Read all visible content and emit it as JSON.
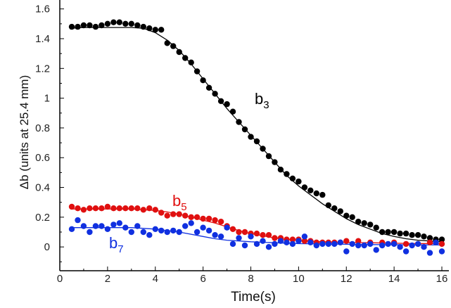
{
  "chart_data": {
    "type": "scatter",
    "xlabel": "Time(s)",
    "ylabel": "Δb (units at 25.4 mm)",
    "xlim": [
      0,
      16
    ],
    "ylim": [
      -0.16,
      1.66
    ],
    "x_ticks": [
      "0",
      "2",
      "4",
      "6",
      "8",
      "10",
      "12",
      "14",
      "16"
    ],
    "y_ticks": [
      "0",
      "0.2",
      "0.4",
      "0.6",
      "0.8",
      "1",
      "1.2",
      "1.4",
      "1.6"
    ],
    "grid": false,
    "series": [
      {
        "name": "b3",
        "label_base": "b",
        "label_sub": "3",
        "color": "#000000",
        "points": [
          [
            0.5,
            1.48
          ],
          [
            0.75,
            1.48
          ],
          [
            1.0,
            1.49
          ],
          [
            1.25,
            1.49
          ],
          [
            1.5,
            1.48
          ],
          [
            1.75,
            1.49
          ],
          [
            2.0,
            1.5
          ],
          [
            2.25,
            1.51
          ],
          [
            2.5,
            1.51
          ],
          [
            2.75,
            1.5
          ],
          [
            3.0,
            1.5
          ],
          [
            3.25,
            1.49
          ],
          [
            3.5,
            1.48
          ],
          [
            3.75,
            1.47
          ],
          [
            4.0,
            1.46
          ],
          [
            4.25,
            1.46
          ],
          [
            4.5,
            1.37
          ],
          [
            4.75,
            1.35
          ],
          [
            5.0,
            1.31
          ],
          [
            5.25,
            1.27
          ],
          [
            5.5,
            1.24
          ],
          [
            5.75,
            1.18
          ],
          [
            6.0,
            1.12
          ],
          [
            6.25,
            1.07
          ],
          [
            6.5,
            1.03
          ],
          [
            6.75,
            0.98
          ],
          [
            7.0,
            0.96
          ],
          [
            7.25,
            0.91
          ],
          [
            7.5,
            0.84
          ],
          [
            7.75,
            0.79
          ],
          [
            8.0,
            0.74
          ],
          [
            8.25,
            0.71
          ],
          [
            8.5,
            0.66
          ],
          [
            8.75,
            0.61
          ],
          [
            9.0,
            0.57
          ],
          [
            9.25,
            0.52
          ],
          [
            9.5,
            0.49
          ],
          [
            9.75,
            0.46
          ],
          [
            10.0,
            0.44
          ],
          [
            10.25,
            0.4
          ],
          [
            10.5,
            0.38
          ],
          [
            10.75,
            0.36
          ],
          [
            11.0,
            0.35
          ],
          [
            11.25,
            0.28
          ],
          [
            11.5,
            0.26
          ],
          [
            11.75,
            0.24
          ],
          [
            12.0,
            0.21
          ],
          [
            12.25,
            0.2
          ],
          [
            12.5,
            0.17
          ],
          [
            12.75,
            0.16
          ],
          [
            13.0,
            0.15
          ],
          [
            13.25,
            0.13
          ],
          [
            13.5,
            0.1
          ],
          [
            13.75,
            0.1
          ],
          [
            14.0,
            0.1
          ],
          [
            14.25,
            0.09
          ],
          [
            14.5,
            0.09
          ],
          [
            14.75,
            0.08
          ],
          [
            15.0,
            0.08
          ],
          [
            15.25,
            0.07
          ],
          [
            15.5,
            0.06
          ],
          [
            15.75,
            0.05
          ],
          [
            16.0,
            0.05
          ]
        ],
        "fit": [
          [
            0.5,
            1.47
          ],
          [
            1,
            1.475
          ],
          [
            2,
            1.475
          ],
          [
            3,
            1.475
          ],
          [
            3.5,
            1.47
          ],
          [
            4,
            1.44
          ],
          [
            4.5,
            1.39
          ],
          [
            5,
            1.32
          ],
          [
            5.5,
            1.23
          ],
          [
            6,
            1.13
          ],
          [
            6.5,
            1.03
          ],
          [
            7,
            0.93
          ],
          [
            7.5,
            0.84
          ],
          [
            8,
            0.75
          ],
          [
            8.5,
            0.66
          ],
          [
            9,
            0.57
          ],
          [
            9.5,
            0.48
          ],
          [
            10,
            0.41
          ],
          [
            10.5,
            0.35
          ],
          [
            11,
            0.29
          ],
          [
            11.5,
            0.24
          ],
          [
            12,
            0.19
          ],
          [
            12.5,
            0.15
          ],
          [
            13,
            0.12
          ],
          [
            13.5,
            0.09
          ],
          [
            14,
            0.07
          ],
          [
            14.5,
            0.055
          ],
          [
            15,
            0.045
          ],
          [
            15.5,
            0.04
          ],
          [
            16,
            0.035
          ]
        ]
      },
      {
        "name": "b5",
        "label_base": "b",
        "label_sub": "5",
        "color": "#e01010",
        "points": [
          [
            0.5,
            0.27
          ],
          [
            0.75,
            0.26
          ],
          [
            1.0,
            0.25
          ],
          [
            1.25,
            0.26
          ],
          [
            1.5,
            0.26
          ],
          [
            1.75,
            0.26
          ],
          [
            2.0,
            0.27
          ],
          [
            2.25,
            0.26
          ],
          [
            2.5,
            0.26
          ],
          [
            2.75,
            0.26
          ],
          [
            3.0,
            0.26
          ],
          [
            3.25,
            0.26
          ],
          [
            3.5,
            0.25
          ],
          [
            3.75,
            0.26
          ],
          [
            4.0,
            0.25
          ],
          [
            4.25,
            0.23
          ],
          [
            4.5,
            0.21
          ],
          [
            4.75,
            0.22
          ],
          [
            5.0,
            0.22
          ],
          [
            5.25,
            0.21
          ],
          [
            5.5,
            0.2
          ],
          [
            5.75,
            0.2
          ],
          [
            6.0,
            0.19
          ],
          [
            6.25,
            0.19
          ],
          [
            6.5,
            0.18
          ],
          [
            6.75,
            0.17
          ],
          [
            7.0,
            0.14
          ],
          [
            7.25,
            0.12
          ],
          [
            7.5,
            0.1
          ],
          [
            7.75,
            0.1
          ],
          [
            8.0,
            0.09
          ],
          [
            8.25,
            0.09
          ],
          [
            8.5,
            0.08
          ],
          [
            8.75,
            0.08
          ],
          [
            9.0,
            0.06
          ],
          [
            9.25,
            0.06
          ],
          [
            9.5,
            0.05
          ],
          [
            9.75,
            0.05
          ],
          [
            10.0,
            0.05
          ],
          [
            10.25,
            0.04
          ],
          [
            10.5,
            0.04
          ],
          [
            10.75,
            0.03
          ],
          [
            11.0,
            0.03
          ],
          [
            11.25,
            0.03
          ],
          [
            11.5,
            0.03
          ],
          [
            11.75,
            0.03
          ],
          [
            12.0,
            0.04
          ],
          [
            12.5,
            0.04
          ],
          [
            13.0,
            0.03
          ],
          [
            13.5,
            0.03
          ],
          [
            14.0,
            0.03
          ],
          [
            14.5,
            0.02
          ],
          [
            15.0,
            0.02
          ],
          [
            15.5,
            0.03
          ],
          [
            16.0,
            0.02
          ]
        ],
        "fit": [
          [
            0.5,
            0.255
          ],
          [
            1,
            0.255
          ],
          [
            2,
            0.255
          ],
          [
            3,
            0.255
          ],
          [
            3.5,
            0.25
          ],
          [
            4,
            0.245
          ],
          [
            4.5,
            0.235
          ],
          [
            5,
            0.22
          ],
          [
            5.5,
            0.2
          ],
          [
            6,
            0.18
          ],
          [
            6.5,
            0.16
          ],
          [
            7,
            0.135
          ],
          [
            7.5,
            0.11
          ],
          [
            8,
            0.09
          ],
          [
            8.5,
            0.075
          ],
          [
            9,
            0.06
          ],
          [
            9.5,
            0.05
          ],
          [
            10,
            0.045
          ],
          [
            11,
            0.035
          ],
          [
            12,
            0.03
          ],
          [
            13,
            0.028
          ],
          [
            14,
            0.025
          ],
          [
            15,
            0.023
          ],
          [
            16,
            0.022
          ]
        ]
      },
      {
        "name": "b7",
        "label_base": "b",
        "label_sub": "7",
        "color": "#1030e0",
        "points": [
          [
            0.5,
            0.12
          ],
          [
            0.75,
            0.18
          ],
          [
            1.0,
            0.14
          ],
          [
            1.25,
            0.1
          ],
          [
            1.5,
            0.14
          ],
          [
            1.75,
            0.14
          ],
          [
            2.0,
            0.12
          ],
          [
            2.25,
            0.15
          ],
          [
            2.5,
            0.16
          ],
          [
            2.75,
            0.13
          ],
          [
            3.0,
            0.1
          ],
          [
            3.25,
            0.14
          ],
          [
            3.5,
            0.1
          ],
          [
            3.75,
            0.08
          ],
          [
            4.0,
            0.12
          ],
          [
            4.25,
            0.11
          ],
          [
            4.5,
            0.1
          ],
          [
            4.75,
            0.11
          ],
          [
            5.0,
            0.1
          ],
          [
            5.25,
            0.14
          ],
          [
            5.5,
            0.16
          ],
          [
            5.75,
            0.1
          ],
          [
            6.0,
            0.13
          ],
          [
            6.25,
            0.11
          ],
          [
            6.5,
            0.08
          ],
          [
            6.75,
            0.07
          ],
          [
            7.0,
            0.13
          ],
          [
            7.25,
            0.02
          ],
          [
            7.5,
            0.06
          ],
          [
            7.75,
            0.01
          ],
          [
            8.0,
            0.07
          ],
          [
            8.25,
            0.02
          ],
          [
            8.5,
            0.04
          ],
          [
            8.75,
            0.0
          ],
          [
            9.0,
            0.02
          ],
          [
            9.25,
            0.04
          ],
          [
            9.5,
            0.03
          ],
          [
            9.75,
            0.02
          ],
          [
            10.0,
            0.04
          ],
          [
            10.25,
            0.07
          ],
          [
            10.5,
            0.03
          ],
          [
            10.75,
            0.01
          ],
          [
            11.0,
            0.02
          ],
          [
            11.25,
            0.02
          ],
          [
            11.5,
            0.02
          ],
          [
            11.75,
            0.03
          ],
          [
            12.0,
            -0.03
          ],
          [
            12.25,
            0.02
          ],
          [
            12.5,
            0.01
          ],
          [
            12.75,
            0.01
          ],
          [
            13.0,
            0.02
          ],
          [
            13.25,
            -0.02
          ],
          [
            13.5,
            0.01
          ],
          [
            13.75,
            0.02
          ],
          [
            14.0,
            0.02
          ],
          [
            14.25,
            0.0
          ],
          [
            14.5,
            -0.03
          ],
          [
            14.75,
            0.01
          ],
          [
            15.0,
            0.02
          ],
          [
            15.25,
            0.0
          ],
          [
            15.5,
            -0.04
          ],
          [
            15.75,
            0.03
          ],
          [
            16.0,
            -0.03
          ]
        ],
        "fit": [
          [
            0.5,
            0.13
          ],
          [
            1,
            0.13
          ],
          [
            2,
            0.13
          ],
          [
            3,
            0.13
          ],
          [
            4,
            0.12
          ],
          [
            5,
            0.1
          ],
          [
            6,
            0.07
          ],
          [
            6.5,
            0.055
          ],
          [
            7,
            0.045
          ],
          [
            8,
            0.035
          ],
          [
            9,
            0.028
          ],
          [
            10,
            0.022
          ],
          [
            11,
            0.02
          ],
          [
            12,
            0.018
          ],
          [
            13,
            0.016
          ],
          [
            14,
            0.015
          ],
          [
            15,
            0.014
          ],
          [
            16,
            0.013
          ]
        ]
      }
    ]
  }
}
